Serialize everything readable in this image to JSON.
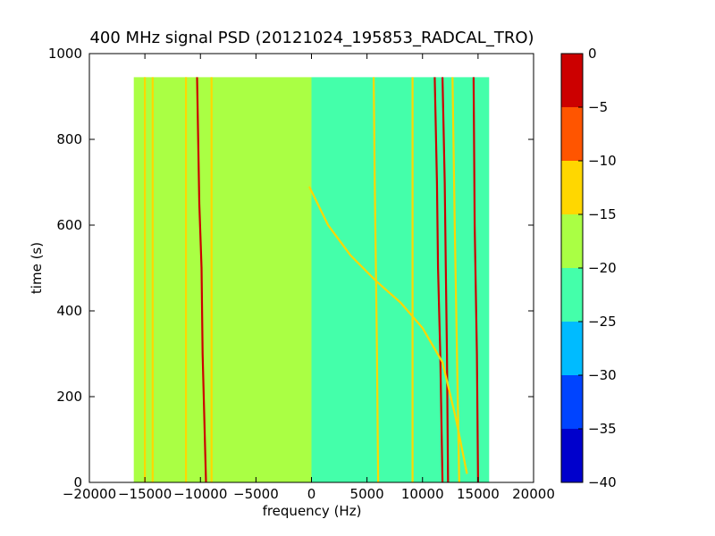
{
  "chart_data": {
    "type": "heatmap",
    "title": "400 MHz signal PSD (20121024_195853_RADCAL_TRO)",
    "xlabel": "frequency (Hz)",
    "ylabel": "time (s)",
    "xlim": [
      -20000,
      20000
    ],
    "ylim": [
      0,
      1000
    ],
    "x_ticks": [
      "−20000",
      "−15000",
      "−10000",
      "−5000",
      "0",
      "5000",
      "10000",
      "15000",
      "20000"
    ],
    "x_tick_values": [
      -20000,
      -15000,
      -10000,
      -5000,
      0,
      5000,
      10000,
      15000,
      20000
    ],
    "y_ticks": [
      "0",
      "200",
      "400",
      "600",
      "800",
      "1000"
    ],
    "y_tick_values": [
      0,
      200,
      400,
      600,
      800,
      1000
    ],
    "data_extent": {
      "freq": [
        -16000,
        16000
      ],
      "time": [
        0,
        945
      ]
    },
    "background_levels": [
      {
        "freq": [
          -16000,
          0
        ],
        "level_db": -17.5
      },
      {
        "freq": [
          0,
          16000
        ],
        "level_db": -22.5
      }
    ],
    "signal_lines": [
      {
        "level_db": -2,
        "points": [
          [
            -9500,
            0
          ],
          [
            -9800,
            300
          ],
          [
            -9900,
            500
          ],
          [
            -10100,
            650
          ],
          [
            -10300,
            945
          ]
        ]
      },
      {
        "level_db": -12,
        "points": [
          [
            -11300,
            0
          ],
          [
            -11300,
            945
          ]
        ]
      },
      {
        "level_db": -12,
        "points": [
          [
            -9000,
            0
          ],
          [
            -9000,
            945
          ]
        ]
      },
      {
        "level_db": -12,
        "points": [
          [
            -15000,
            0
          ],
          [
            -15000,
            945
          ]
        ]
      },
      {
        "level_db": -14,
        "points": [
          [
            -14300,
            0
          ],
          [
            -14300,
            945
          ]
        ]
      },
      {
        "level_db": -14,
        "points": [
          [
            6000,
            0
          ],
          [
            5900,
            300
          ],
          [
            5800,
            500
          ],
          [
            5700,
            700
          ],
          [
            5600,
            945
          ]
        ]
      },
      {
        "level_db": -14,
        "points": [
          [
            9100,
            0
          ],
          [
            9100,
            945
          ]
        ]
      },
      {
        "level_db": -2,
        "points": [
          [
            11800,
            0
          ],
          [
            11600,
            300
          ],
          [
            11400,
            500
          ],
          [
            11300,
            700
          ],
          [
            11100,
            945
          ]
        ]
      },
      {
        "level_db": -2,
        "points": [
          [
            12300,
            0
          ],
          [
            12200,
            300
          ],
          [
            12100,
            500
          ],
          [
            12000,
            700
          ],
          [
            11800,
            945
          ]
        ]
      },
      {
        "level_db": -14,
        "points": [
          [
            13300,
            0
          ],
          [
            13100,
            300
          ],
          [
            12900,
            600
          ],
          [
            12700,
            945
          ]
        ]
      },
      {
        "level_db": -2,
        "points": [
          [
            15000,
            0
          ],
          [
            14900,
            300
          ],
          [
            14700,
            600
          ],
          [
            14600,
            945
          ]
        ]
      },
      {
        "level_db": -12,
        "points": [
          [
            -200,
            690
          ],
          [
            1500,
            600
          ],
          [
            3500,
            530
          ],
          [
            5800,
            470
          ],
          [
            8000,
            420
          ],
          [
            10000,
            360
          ],
          [
            11800,
            280
          ],
          [
            13000,
            150
          ],
          [
            14000,
            20
          ]
        ]
      }
    ],
    "colorbar": {
      "type": "discrete",
      "min": -40,
      "max": 0,
      "tick_labels": [
        "0",
        "−5",
        "−10",
        "−15",
        "−20",
        "−25",
        "−30",
        "−35",
        "−40"
      ],
      "tick_values": [
        0,
        -5,
        -10,
        -15,
        -20,
        -25,
        -30,
        -35,
        -40
      ],
      "bands": [
        {
          "range": [
            -5,
            0
          ],
          "color": "#cc0000"
        },
        {
          "range": [
            -10,
            -5
          ],
          "color": "#ff5500"
        },
        {
          "range": [
            -15,
            -10
          ],
          "color": "#ffd700"
        },
        {
          "range": [
            -20,
            -15
          ],
          "color": "#aaff44"
        },
        {
          "range": [
            -25,
            -20
          ],
          "color": "#44ffaa"
        },
        {
          "range": [
            -30,
            -25
          ],
          "color": "#00bbff"
        },
        {
          "range": [
            -35,
            -30
          ],
          "color": "#0044ff"
        },
        {
          "range": [
            -40,
            -35
          ],
          "color": "#0000cc"
        }
      ]
    }
  }
}
